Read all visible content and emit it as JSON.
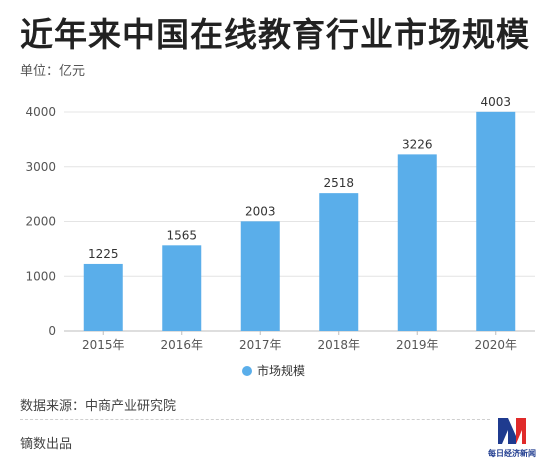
{
  "title": "近年来中国在线教育行业市场规模",
  "unit_label": "单位：亿元",
  "source_label": "数据来源：中商产业研究院",
  "produced_label": "镝数出品",
  "logo_text": "每日经济新闻",
  "bar_color": "#5aaeea",
  "chart_data": {
    "type": "bar",
    "categories": [
      "2015年",
      "2016年",
      "2017年",
      "2018年",
      "2019年",
      "2020年"
    ],
    "series": [
      {
        "name": "市场规模",
        "values": [
          1225,
          1565,
          2003,
          2518,
          3226,
          4003
        ]
      }
    ],
    "data_labels": [
      "1225",
      "1565",
      "2003",
      "2518",
      "3226",
      "4003"
    ],
    "y_ticks": [
      "0",
      "1000",
      "2000",
      "3000",
      "4000"
    ],
    "y_tick_values": [
      0,
      1000,
      2000,
      3000,
      4000
    ],
    "ylim": [
      0,
      4100
    ],
    "grid": true,
    "legend": "bottom-center"
  }
}
